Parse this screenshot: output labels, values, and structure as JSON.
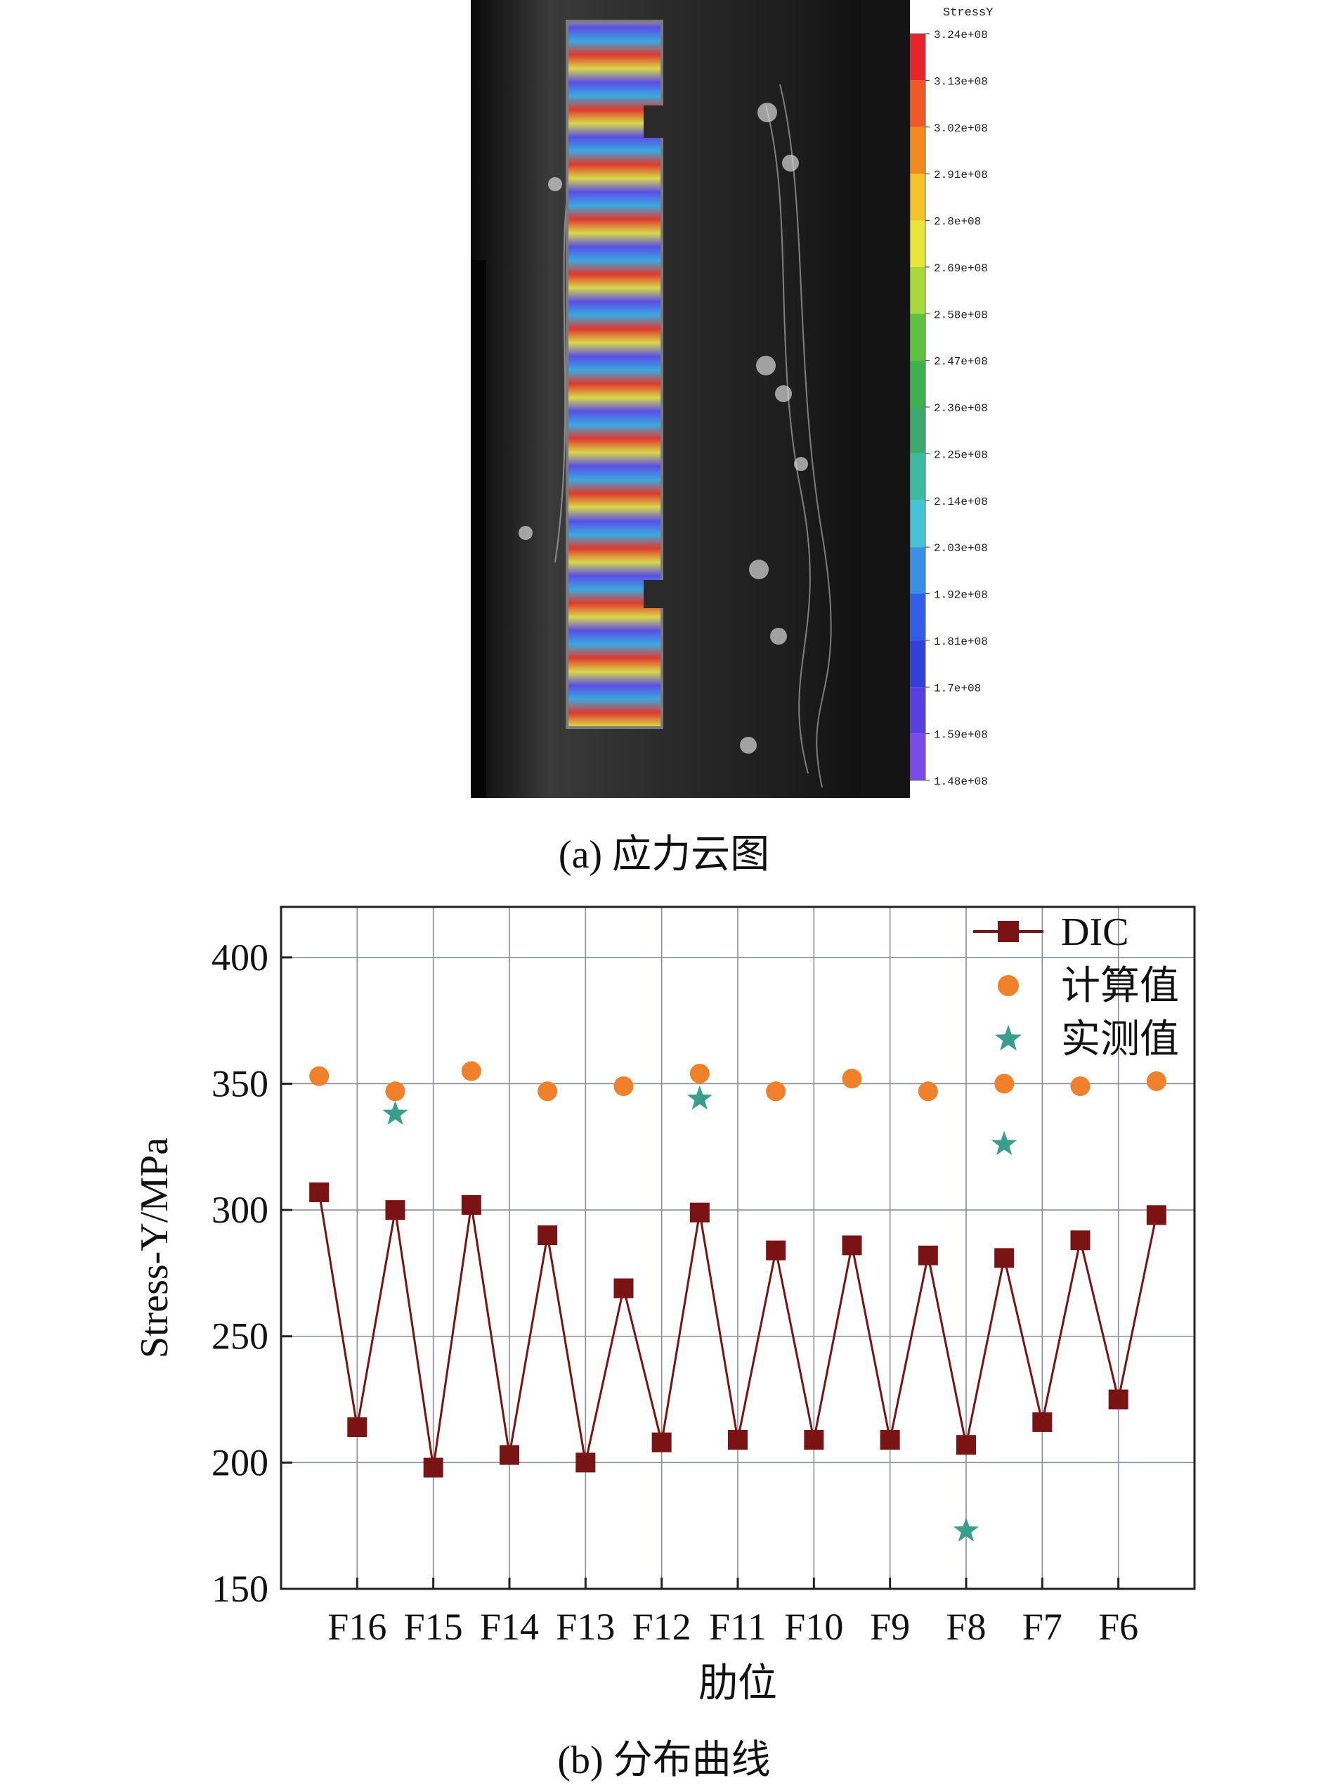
{
  "panel_a": {
    "caption": "(a) 应力云图",
    "colorbar": {
      "title": "StressY",
      "tick_labels": [
        "3.24e+08",
        "3.13e+08",
        "3.02e+08",
        "2.91e+08",
        "2.8e+08",
        "2.69e+08",
        "2.58e+08",
        "2.47e+08",
        "2.36e+08",
        "2.25e+08",
        "2.14e+08",
        "2.03e+08",
        "1.92e+08",
        "1.81e+08",
        "1.7e+08",
        "1.59e+08",
        "1.48e+08"
      ],
      "colors": [
        "#e8242a",
        "#ee5a26",
        "#f28a1e",
        "#f6c22a",
        "#e6e63a",
        "#a8d83a",
        "#5ec23e",
        "#3fb04c",
        "#3ea86e",
        "#3dbba2",
        "#43c4d6",
        "#3a8fe6",
        "#2f5fe6",
        "#3040d8",
        "#5a3fe0",
        "#7b4ae8",
        "#9a59f0"
      ],
      "stripe_colors": [
        "#e03a2c",
        "#d9d84a",
        "#5a4ee6",
        "#3aa9e0",
        "#e03a2c"
      ]
    }
  },
  "panel_b": {
    "caption": "(b) 分布曲线",
    "colors": {
      "dic": "#7a1414",
      "calc": "#f0802a",
      "meas": "#3a9e8c",
      "grid": "#8a8e98"
    },
    "chart_data": {
      "type": "line",
      "xlabel": "肋位",
      "ylabel": "Stress-Y/MPa",
      "ylim": [
        150,
        420
      ],
      "yticks": [
        150,
        200,
        250,
        300,
        350,
        400
      ],
      "x_tick_labels": [
        "F16",
        "F15",
        "F14",
        "F13",
        "F12",
        "F11",
        "F10",
        "F9",
        "F8",
        "F7",
        "F6"
      ],
      "x_tick_positions": [
        1,
        2,
        3,
        4,
        5,
        6,
        7,
        8,
        9,
        10,
        11
      ],
      "xlim": [
        0,
        12
      ],
      "legend_position": "top-right",
      "series": [
        {
          "name": "DIC",
          "marker": "square",
          "line": true,
          "x": [
            0.5,
            1,
            1.5,
            2,
            2.5,
            3,
            3.5,
            4,
            4.5,
            5,
            5.5,
            6,
            6.5,
            7,
            7.5,
            8,
            8.5,
            9,
            9.5,
            10,
            10.5,
            11,
            11.5
          ],
          "y": [
            307,
            214,
            300,
            198,
            302,
            203,
            290,
            200,
            269,
            208,
            299,
            209,
            284,
            209,
            286,
            209,
            282,
            207,
            281,
            216,
            288,
            225,
            298
          ]
        },
        {
          "name": "计算值",
          "marker": "circle",
          "line": false,
          "x": [
            0.5,
            1.5,
            2.5,
            3.5,
            4.5,
            5.5,
            6.5,
            7.5,
            8.5,
            9.5,
            10.5,
            11.5
          ],
          "y": [
            353,
            347,
            355,
            347,
            349,
            354,
            347,
            352,
            347,
            350,
            349,
            351
          ]
        },
        {
          "name": "实测值",
          "marker": "star",
          "line": false,
          "x": [
            1.5,
            5.5,
            9,
            9.5
          ],
          "y": [
            338,
            344,
            173,
            326
          ]
        }
      ]
    }
  }
}
